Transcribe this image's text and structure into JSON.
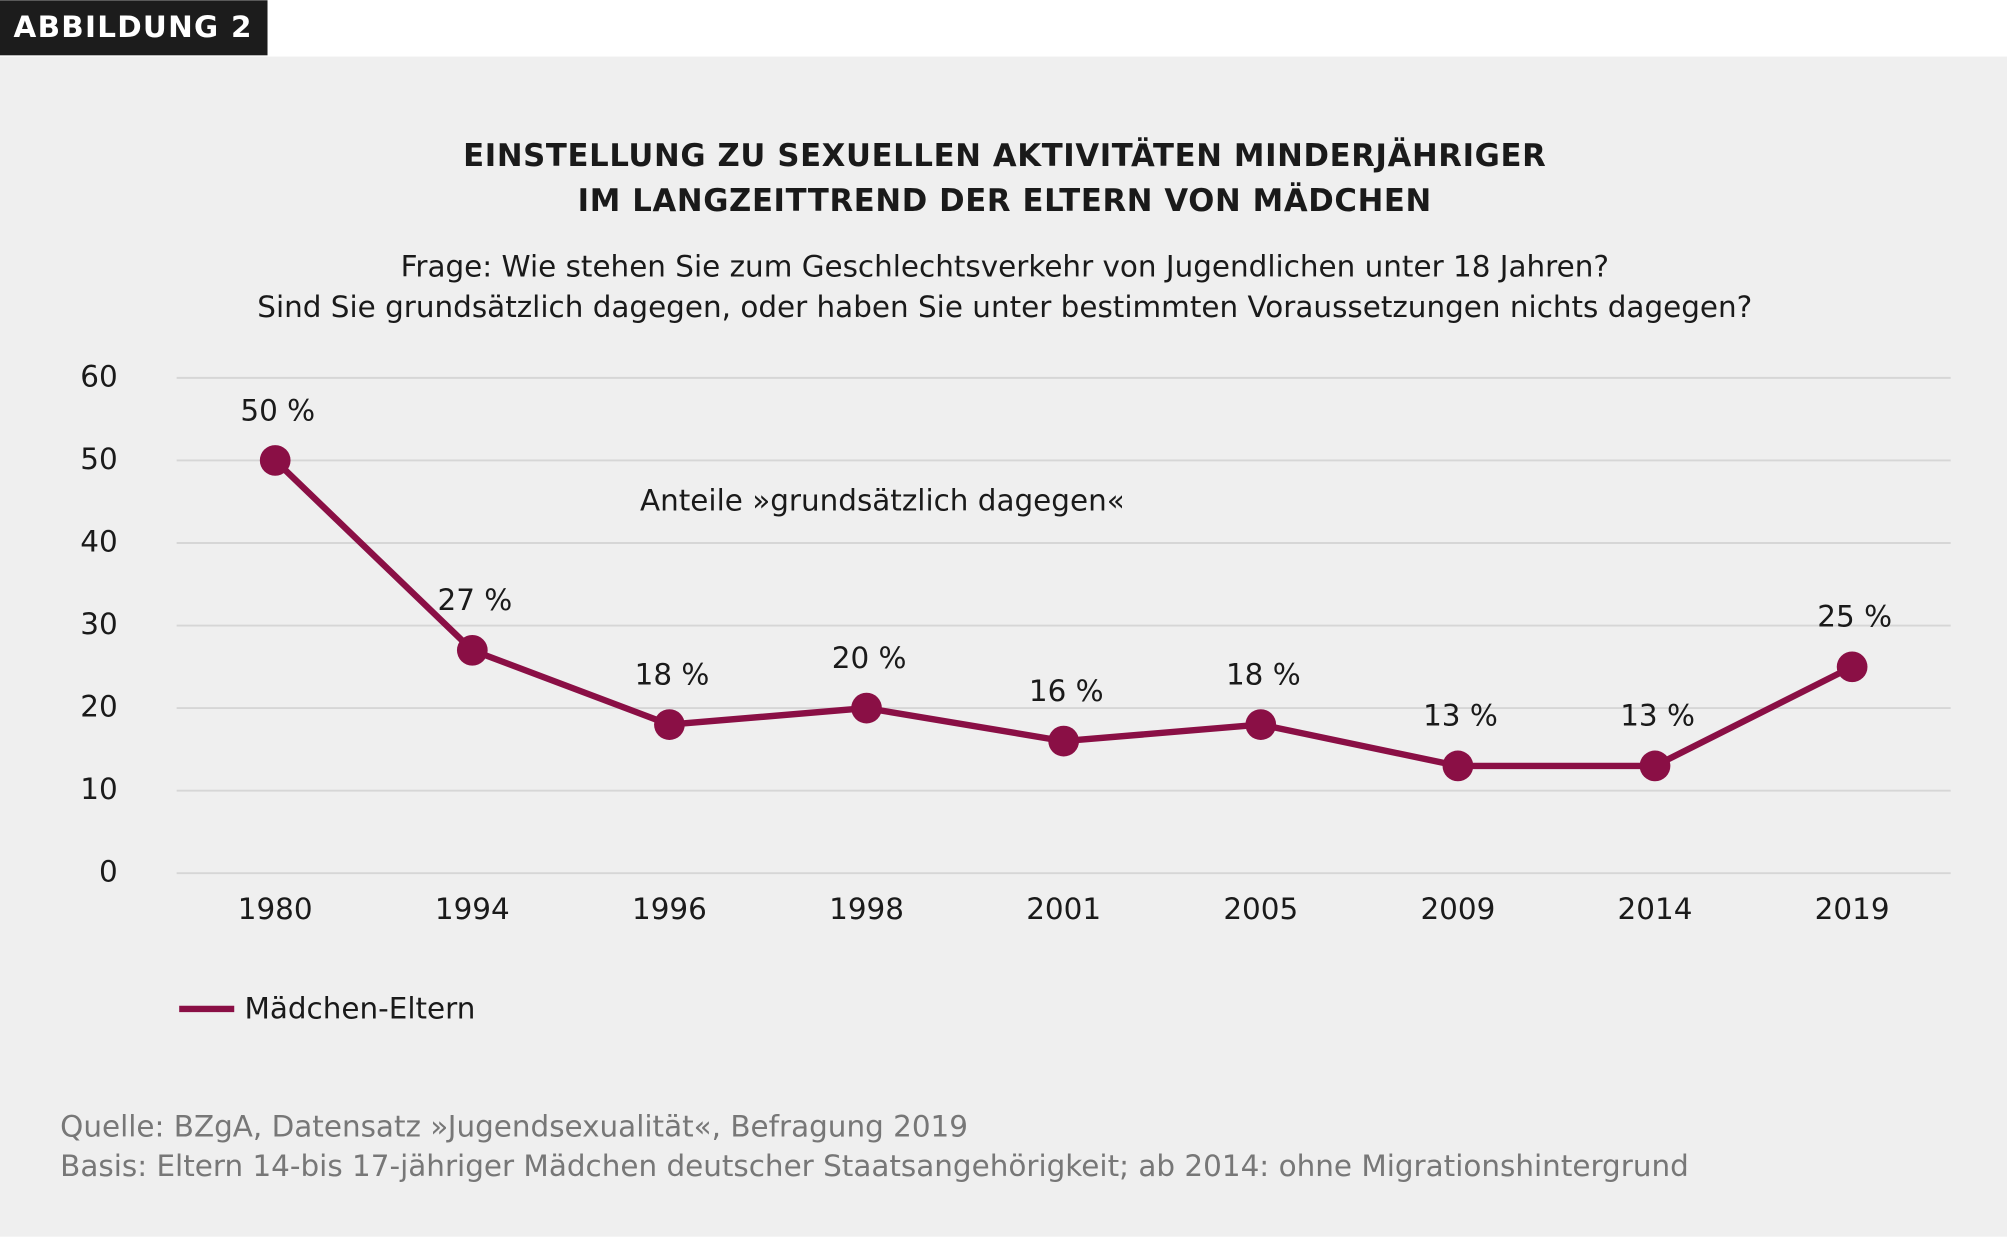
{
  "figure_label": "ABBILDUNG 2",
  "chart_data": {
    "type": "line",
    "title": [
      "EINSTELLUNG ZU SEXUELLEN AKTIVITÄTEN MINDERJÄHRIGER",
      "IM LANGZEITTREND DER ELTERN VON MÄDCHEN"
    ],
    "subtitle": [
      "Frage: Wie stehen Sie zum Geschlechtsverkehr von Jugendlichen unter 18 Jahren?",
      "Sind Sie grundsätzlich dagegen, oder haben Sie unter bestimmten Voraussetzungen nichts dagegen?"
    ],
    "annotation": "Anteile »grundsätzlich dagegen«",
    "categories": [
      "1980",
      "1994",
      "1996",
      "1998",
      "2001",
      "2005",
      "2009",
      "2014",
      "2019"
    ],
    "series": [
      {
        "name": "Mädchen-Eltern",
        "color": "#8a0f45",
        "values": [
          50,
          27,
          18,
          20,
          16,
          18,
          13,
          13,
          25
        ],
        "value_labels": [
          "50 %",
          "27 %",
          "18 %",
          "20 %",
          "16 %",
          "18 %",
          "13 %",
          "13 %",
          "25 %"
        ]
      }
    ],
    "ylim": [
      0,
      60
    ],
    "yticks": [
      0,
      10,
      20,
      30,
      40,
      50,
      60
    ],
    "grid": true,
    "legend": "bottom-left"
  },
  "source": "Quelle: BZgA, Datensatz »Jugendsexualität«, Befragung 2019",
  "note": "Basis: Eltern 14-bis 17-jähriger Mädchen deutscher Staatsangehörigkeit; ab 2014: ohne Migrationshintergrund"
}
